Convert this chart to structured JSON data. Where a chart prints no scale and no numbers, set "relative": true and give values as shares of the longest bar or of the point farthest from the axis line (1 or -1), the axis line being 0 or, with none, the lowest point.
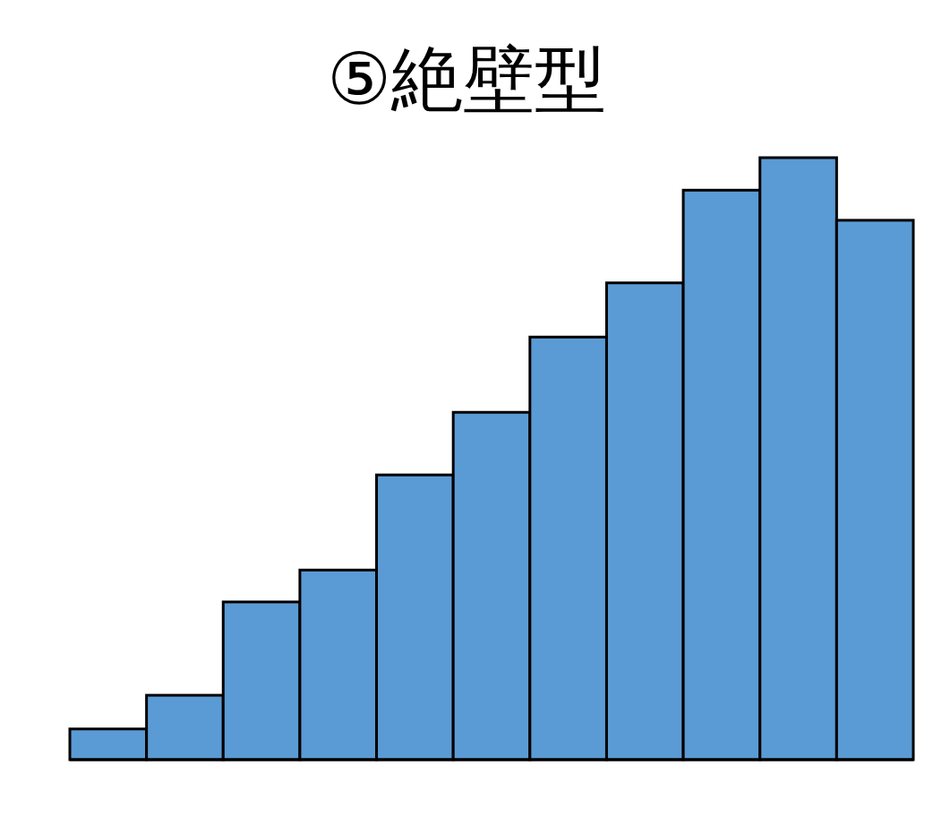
{
  "chart_data": {
    "type": "bar",
    "title": "⑤絶壁型",
    "relative": true,
    "color": "#5b9bd5",
    "categories": [
      null,
      null,
      null,
      null,
      null,
      null,
      null,
      null,
      null,
      null,
      null
    ],
    "values": [
      0.051,
      0.107,
      0.262,
      0.315,
      0.473,
      0.577,
      0.702,
      0.792,
      0.946,
      1,
      0.896
    ]
  }
}
